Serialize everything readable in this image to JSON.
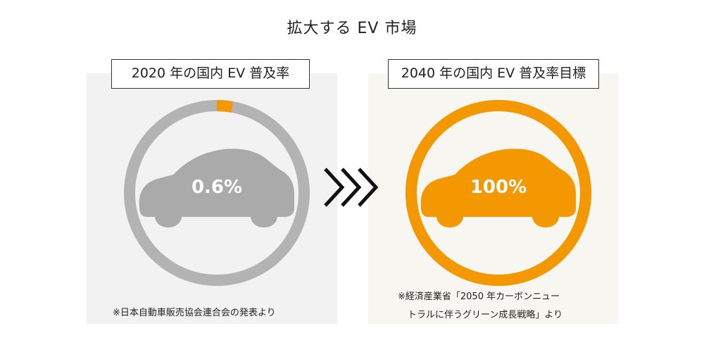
{
  "title": "拡大する EV 市場",
  "panels": [
    {
      "label": "2020 年の国内 EV 普及率",
      "percent_text": "0.6%",
      "share": 0.6,
      "ring_color": "#b3b3b3",
      "accent_color": "#f39800",
      "car_color": "#aaaaaa",
      "car_icon": "car-icon",
      "note": "※日本自動車販売協会連合会の発表より"
    },
    {
      "label": "2040 年の国内 EV 普及率目標",
      "percent_text": "100%",
      "share": 100,
      "ring_color": "#f39800",
      "accent_color": "#f39800",
      "car_color": "#f39800",
      "car_icon": "car-icon",
      "note_lines": [
        "※経済産業省「2050 年カーボンニュー",
        "トラルに伴うグリーン成長戦略」より"
      ]
    }
  ],
  "arrow_icon": "triple-chevron-right-icon"
}
